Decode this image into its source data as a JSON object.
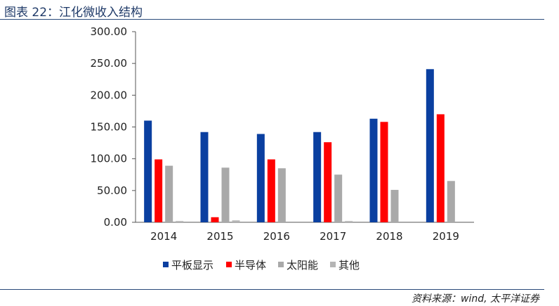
{
  "header": {
    "title": "图表 22：江化微收入结构"
  },
  "footer": {
    "source": "资料来源：wind, 太平洋证券"
  },
  "colors": {
    "平板显示": "#0a3fa0",
    "半导体": "#ff0000",
    "太阳能": "#a9a9a9",
    "其他": "#b5b5b5"
  },
  "chart_data": {
    "type": "bar",
    "categories": [
      "2014",
      "2015",
      "2016",
      "2017",
      "2018",
      "2019"
    ],
    "series": [
      {
        "name": "平板显示",
        "values": [
          160,
          142,
          139,
          142,
          163,
          241
        ]
      },
      {
        "name": "半导体",
        "values": [
          99,
          8,
          99,
          126,
          158,
          170
        ]
      },
      {
        "name": "太阳能",
        "values": [
          89,
          86,
          85,
          75,
          51,
          65
        ]
      },
      {
        "name": "其他",
        "values": [
          2,
          3,
          0,
          2,
          0,
          0
        ]
      }
    ],
    "yticks": [
      "0.00",
      "50.00",
      "100.00",
      "150.00",
      "200.00",
      "250.00",
      "300.00"
    ],
    "ylim": [
      0,
      300
    ],
    "legend_position": "bottom",
    "grid": false
  }
}
